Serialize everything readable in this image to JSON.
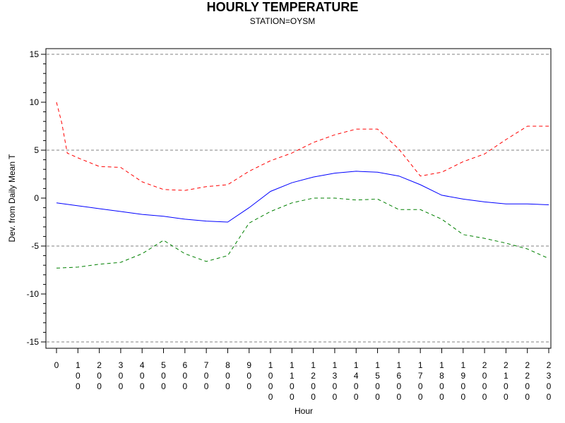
{
  "chart_data": {
    "type": "line",
    "title": "HOURLY TEMPERATURE",
    "subtitle": "STATION=OYSM",
    "xlabel": "Hour",
    "ylabel": "Dev. from Daily Mean T",
    "ylim": [
      -15,
      15
    ],
    "y_ticks": [
      15,
      10,
      5,
      0,
      -5,
      -10,
      -15
    ],
    "reference_lines": [
      15,
      5,
      -5,
      -15
    ],
    "x_tick_labels": [
      "0",
      "100",
      "200",
      "300",
      "400",
      "500",
      "600",
      "700",
      "800",
      "900",
      "1000",
      "1100",
      "1200",
      "1300",
      "1400",
      "1500",
      "1600",
      "1700",
      "1800",
      "1900",
      "2000",
      "2100",
      "2200",
      "2300"
    ],
    "grid": false,
    "series": [
      {
        "color": "#ff0000",
        "style": "dash",
        "x": [
          0,
          25,
          50,
          100,
          200,
          300,
          400,
          500,
          600,
          700,
          800,
          900,
          1000,
          1100,
          1200,
          1300,
          1400,
          1500,
          1600,
          1700,
          1800,
          1900,
          2000,
          2100,
          2200,
          2300
        ],
        "values": [
          10.0,
          7.8,
          4.7,
          4.2,
          3.3,
          3.2,
          1.7,
          0.9,
          0.8,
          1.2,
          1.4,
          2.8,
          3.9,
          4.7,
          5.8,
          6.6,
          7.2,
          7.2,
          5.1,
          2.3,
          2.7,
          3.8,
          4.6,
          6.1,
          7.5,
          7.5
        ]
      },
      {
        "color": "#0000ff",
        "style": "solid",
        "x": [
          0,
          100,
          200,
          300,
          400,
          500,
          600,
          700,
          800,
          900,
          1000,
          1100,
          1200,
          1300,
          1400,
          1500,
          1600,
          1700,
          1800,
          1900,
          2000,
          2100,
          2200,
          2300
        ],
        "values": [
          -0.5,
          -0.8,
          -1.1,
          -1.4,
          -1.7,
          -1.9,
          -2.2,
          -2.4,
          -2.5,
          -1.0,
          0.7,
          1.6,
          2.2,
          2.6,
          2.8,
          2.7,
          2.3,
          1.4,
          0.3,
          -0.1,
          -0.4,
          -0.6,
          -0.6,
          -0.7
        ]
      },
      {
        "color": "#008000",
        "style": "dash",
        "x": [
          0,
          100,
          200,
          300,
          400,
          500,
          600,
          700,
          800,
          900,
          1000,
          1100,
          1200,
          1300,
          1400,
          1500,
          1600,
          1700,
          1800,
          1900,
          2000,
          2100,
          2200,
          2300
        ],
        "values": [
          -7.3,
          -7.2,
          -6.9,
          -6.7,
          -5.8,
          -4.4,
          -5.8,
          -6.6,
          -6.0,
          -2.6,
          -1.4,
          -0.5,
          0.0,
          0.0,
          -0.2,
          -0.1,
          -1.2,
          -1.2,
          -2.2,
          -3.8,
          -4.2,
          -4.7,
          -5.3,
          -6.3
        ]
      }
    ]
  }
}
